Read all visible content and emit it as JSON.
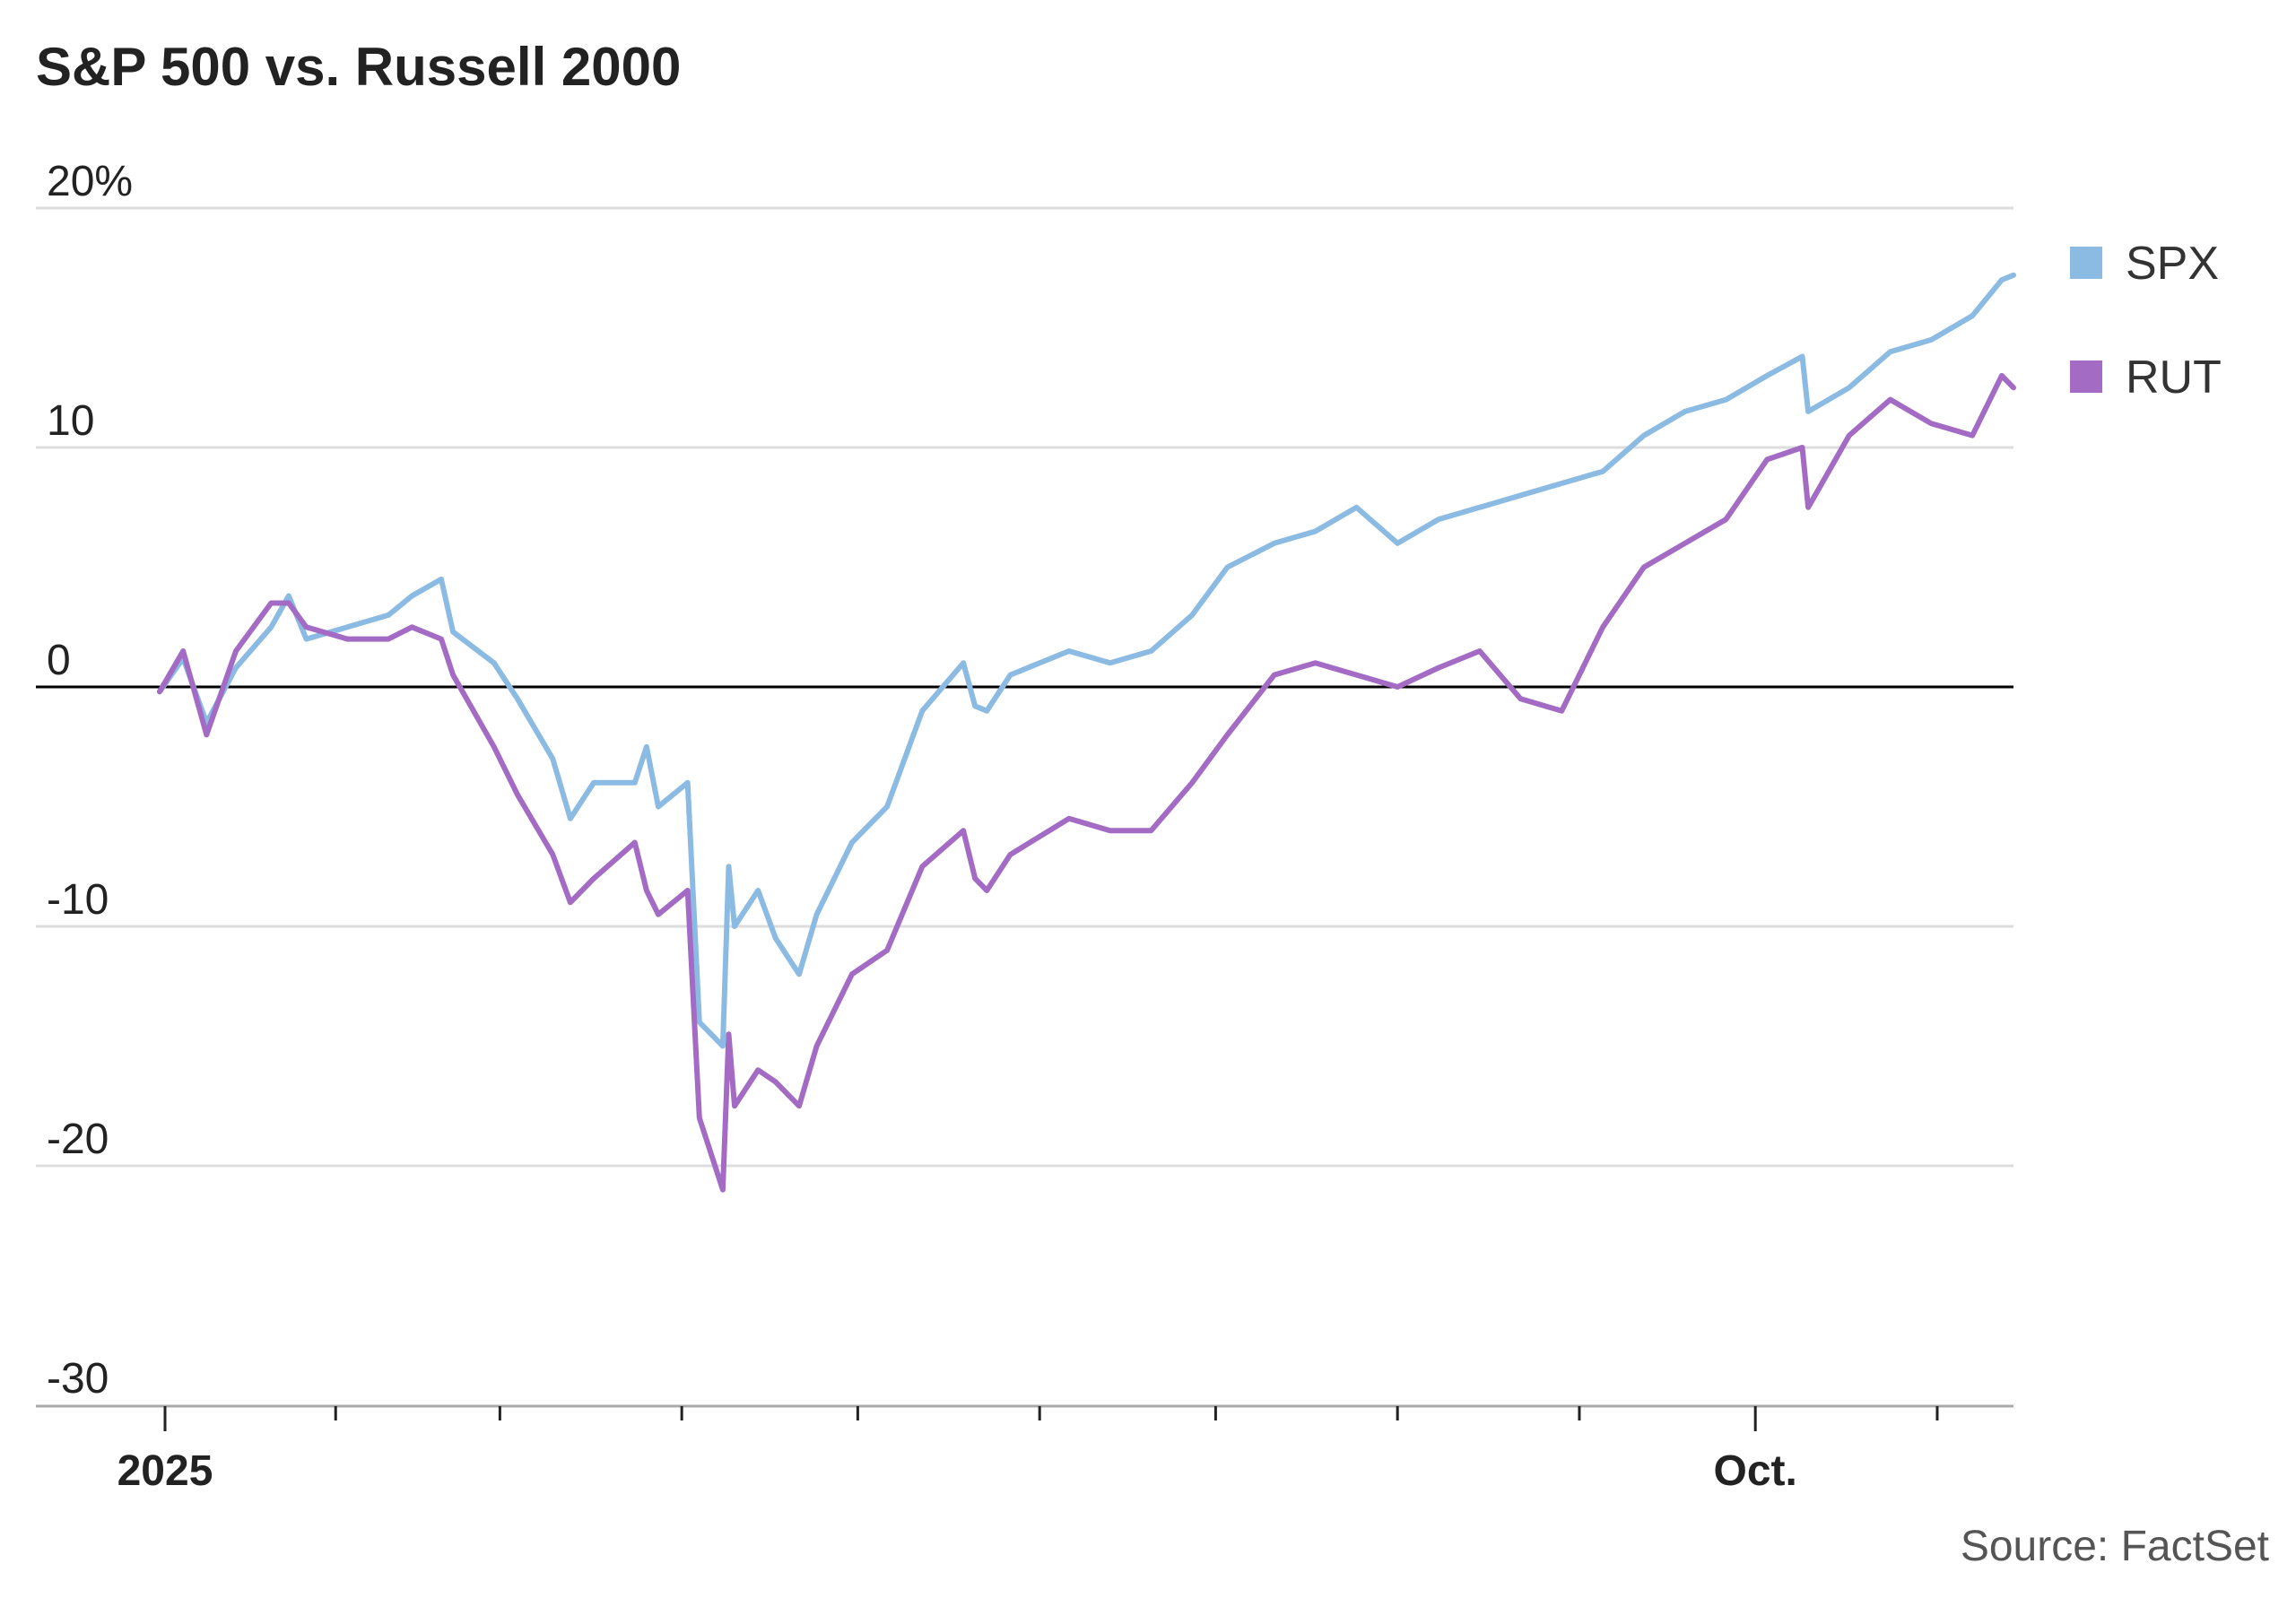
{
  "chart_data": {
    "type": "line",
    "title": "S&P 500 vs. Russell 2000",
    "xlabel": "",
    "ylabel": "",
    "x_ticks": [
      "2025",
      "Oct."
    ],
    "y_ticks": [
      "20%",
      "10",
      "0",
      "-10",
      "-20",
      "-30"
    ],
    "y_tick_values": [
      20,
      10,
      0,
      -10,
      -20,
      -30
    ],
    "ylim": [
      -30,
      20
    ],
    "xlim": [
      "2025-01-02",
      "2025-11-14"
    ],
    "grid": true,
    "legend_position": "right",
    "source": "Source: FactSet",
    "series": [
      {
        "name": "SPX",
        "color": "#8bbbe3",
        "points": [
          [
            "2025-01-02",
            -0.2
          ],
          [
            "2025-01-06",
            1.2
          ],
          [
            "2025-01-10",
            -1.5
          ],
          [
            "2025-01-15",
            0.8
          ],
          [
            "2025-01-21",
            2.5
          ],
          [
            "2025-01-24",
            3.8
          ],
          [
            "2025-01-27",
            2.0
          ],
          [
            "2025-02-03",
            2.5
          ],
          [
            "2025-02-10",
            3.0
          ],
          [
            "2025-02-14",
            3.8
          ],
          [
            "2025-02-19",
            4.5
          ],
          [
            "2025-02-21",
            2.3
          ],
          [
            "2025-02-28",
            1.0
          ],
          [
            "2025-03-04",
            -0.5
          ],
          [
            "2025-03-10",
            -3.0
          ],
          [
            "2025-03-13",
            -5.5
          ],
          [
            "2025-03-17",
            -4.0
          ],
          [
            "2025-03-24",
            -4.0
          ],
          [
            "2025-03-26",
            -2.5
          ],
          [
            "2025-03-28",
            -5.0
          ],
          [
            "2025-04-02",
            -4.0
          ],
          [
            "2025-04-04",
            -14.0
          ],
          [
            "2025-04-08",
            -15.0
          ],
          [
            "2025-04-09",
            -7.5
          ],
          [
            "2025-04-10",
            -10.0
          ],
          [
            "2025-04-14",
            -8.5
          ],
          [
            "2025-04-17",
            -10.5
          ],
          [
            "2025-04-21",
            -12.0
          ],
          [
            "2025-04-24",
            -9.5
          ],
          [
            "2025-04-30",
            -6.5
          ],
          [
            "2025-05-06",
            -5.0
          ],
          [
            "2025-05-12",
            -1.0
          ],
          [
            "2025-05-19",
            1.0
          ],
          [
            "2025-05-21",
            -0.8
          ],
          [
            "2025-05-23",
            -1.0
          ],
          [
            "2025-05-27",
            0.5
          ],
          [
            "2025-06-06",
            1.5
          ],
          [
            "2025-06-13",
            1.0
          ],
          [
            "2025-06-20",
            1.5
          ],
          [
            "2025-06-27",
            3.0
          ],
          [
            "2025-07-03",
            5.0
          ],
          [
            "2025-07-11",
            6.0
          ],
          [
            "2025-07-18",
            6.5
          ],
          [
            "2025-07-25",
            7.5
          ],
          [
            "2025-08-01",
            6.0
          ],
          [
            "2025-08-08",
            7.0
          ],
          [
            "2025-08-15",
            7.5
          ],
          [
            "2025-08-22",
            8.0
          ],
          [
            "2025-08-29",
            8.5
          ],
          [
            "2025-09-05",
            9.0
          ],
          [
            "2025-09-12",
            10.5
          ],
          [
            "2025-09-19",
            11.5
          ],
          [
            "2025-09-26",
            12.0
          ],
          [
            "2025-10-03",
            13.0
          ],
          [
            "2025-10-09",
            13.8
          ],
          [
            "2025-10-10",
            11.5
          ],
          [
            "2025-10-17",
            12.5
          ],
          [
            "2025-10-24",
            14.0
          ],
          [
            "2025-10-31",
            14.5
          ],
          [
            "2025-11-07",
            15.5
          ],
          [
            "2025-11-12",
            17.0
          ],
          [
            "2025-11-14",
            17.2
          ]
        ]
      },
      {
        "name": "RUT",
        "color": "#a36bc4",
        "points": [
          [
            "2025-01-02",
            -0.2
          ],
          [
            "2025-01-06",
            1.5
          ],
          [
            "2025-01-10",
            -2.0
          ],
          [
            "2025-01-15",
            1.5
          ],
          [
            "2025-01-21",
            3.5
          ],
          [
            "2025-01-24",
            3.5
          ],
          [
            "2025-01-27",
            2.5
          ],
          [
            "2025-02-03",
            2.0
          ],
          [
            "2025-02-10",
            2.0
          ],
          [
            "2025-02-14",
            2.5
          ],
          [
            "2025-02-19",
            2.0
          ],
          [
            "2025-02-21",
            0.5
          ],
          [
            "2025-02-28",
            -2.5
          ],
          [
            "2025-03-04",
            -4.5
          ],
          [
            "2025-03-10",
            -7.0
          ],
          [
            "2025-03-13",
            -9.0
          ],
          [
            "2025-03-17",
            -8.0
          ],
          [
            "2025-03-24",
            -6.5
          ],
          [
            "2025-03-26",
            -8.5
          ],
          [
            "2025-03-28",
            -9.5
          ],
          [
            "2025-04-02",
            -8.5
          ],
          [
            "2025-04-04",
            -18.0
          ],
          [
            "2025-04-08",
            -21.0
          ],
          [
            "2025-04-09",
            -14.5
          ],
          [
            "2025-04-10",
            -17.5
          ],
          [
            "2025-04-14",
            -16.0
          ],
          [
            "2025-04-17",
            -16.5
          ],
          [
            "2025-04-21",
            -17.5
          ],
          [
            "2025-04-24",
            -15.0
          ],
          [
            "2025-04-30",
            -12.0
          ],
          [
            "2025-05-06",
            -11.0
          ],
          [
            "2025-05-12",
            -7.5
          ],
          [
            "2025-05-19",
            -6.0
          ],
          [
            "2025-05-21",
            -8.0
          ],
          [
            "2025-05-23",
            -8.5
          ],
          [
            "2025-05-27",
            -7.0
          ],
          [
            "2025-06-06",
            -5.5
          ],
          [
            "2025-06-13",
            -6.0
          ],
          [
            "2025-06-20",
            -6.0
          ],
          [
            "2025-06-27",
            -4.0
          ],
          [
            "2025-07-03",
            -2.0
          ],
          [
            "2025-07-11",
            0.5
          ],
          [
            "2025-07-18",
            1.0
          ],
          [
            "2025-07-25",
            0.5
          ],
          [
            "2025-08-01",
            0.0
          ],
          [
            "2025-08-08",
            0.8
          ],
          [
            "2025-08-15",
            1.5
          ],
          [
            "2025-08-22",
            -0.5
          ],
          [
            "2025-08-29",
            -1.0
          ],
          [
            "2025-09-05",
            2.5
          ],
          [
            "2025-09-12",
            5.0
          ],
          [
            "2025-09-19",
            6.0
          ],
          [
            "2025-09-26",
            7.0
          ],
          [
            "2025-10-03",
            9.5
          ],
          [
            "2025-10-09",
            10.0
          ],
          [
            "2025-10-10",
            7.5
          ],
          [
            "2025-10-17",
            10.5
          ],
          [
            "2025-10-24",
            12.0
          ],
          [
            "2025-10-31",
            11.0
          ],
          [
            "2025-11-07",
            10.5
          ],
          [
            "2025-11-12",
            13.0
          ],
          [
            "2025-11-14",
            12.5
          ]
        ]
      }
    ]
  }
}
